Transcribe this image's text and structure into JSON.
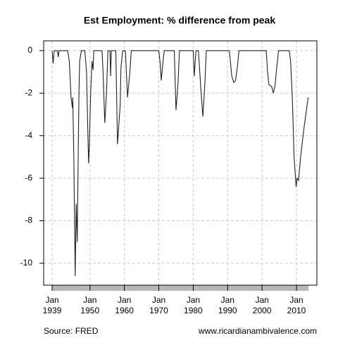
{
  "chart_data": {
    "type": "line",
    "title": "Est Employment: % difference from peak",
    "source": "Source: FRED",
    "credit": "www.ricardianambivalence.com",
    "color": "#222222",
    "grid": true,
    "xlim": [
      1936.54,
      2015.93
    ],
    "ylim": [
      -11.03,
      0.46
    ],
    "yticks": [
      0,
      -2,
      -4,
      -6,
      -8,
      -10
    ],
    "xticks": [
      {
        "value": 1939,
        "label": "Jan 1939"
      },
      {
        "value": 1950,
        "label": "Jan 1950"
      },
      {
        "value": 1960,
        "label": "Jan 1960"
      },
      {
        "value": 1970,
        "label": "Jan 1970"
      },
      {
        "value": 1980,
        "label": "Jan 1980"
      },
      {
        "value": 1990,
        "label": "Jan 1990"
      },
      {
        "value": 2000,
        "label": "Jan 2000"
      },
      {
        "value": 2010,
        "label": "Jan 2010"
      }
    ],
    "x": [
      1939.0,
      1939.3,
      1939.6,
      1940.5,
      1940.8,
      1941.0,
      1943.5,
      1944.0,
      1944.5,
      1944.9,
      1945.0,
      1945.3,
      1945.7,
      1946.0,
      1946.3,
      1946.5,
      1946.8,
      1947.0,
      1947.5,
      1948.5,
      1949.0,
      1949.4,
      1949.6,
      1949.8,
      1950.2,
      1950.6,
      1950.9,
      1951.1,
      1953.5,
      1953.8,
      1954.3,
      1954.8,
      1955.2,
      1955.8,
      1956.0,
      1956.2,
      1957.5,
      1958.0,
      1958.8,
      1959.0,
      1959.5,
      1960.3,
      1960.9,
      1961.6,
      1962.0,
      1970.0,
      1970.4,
      1970.7,
      1971.3,
      1971.6,
      1974.5,
      1975.0,
      1975.6,
      1976.0,
      1980.0,
      1980.3,
      1980.8,
      1981.5,
      1982.3,
      1982.8,
      1983.4,
      1983.8,
      1990.5,
      1991.2,
      1991.8,
      1992.3,
      1992.8,
      1993.3,
      2001.2,
      2001.6,
      2002.0,
      2002.8,
      2003.3,
      2003.8,
      2004.2,
      2004.8,
      2007.9,
      2008.3,
      2008.8,
      2009.3,
      2009.9,
      2010.2,
      2010.6,
      2011.2,
      2012.3,
      2013.4
    ],
    "series": [
      {
        "values": [
          0,
          -0.6,
          0,
          0,
          -0.3,
          0,
          0,
          -0.5,
          -2.2,
          -2.7,
          -2.2,
          -5,
          -10.6,
          -7.2,
          -9.0,
          -6,
          -2,
          -0.5,
          0,
          0,
          -1,
          -4,
          -5.3,
          -4.5,
          -2,
          -0.5,
          -0.9,
          0,
          0,
          -1,
          -3.4,
          -2,
          0,
          0,
          -1.2,
          0,
          0,
          -4.4,
          -2.5,
          -0.8,
          0,
          0,
          -2.2,
          -1,
          0,
          0,
          -0.6,
          -1.4,
          -0.4,
          0,
          0,
          -2.8,
          -1.5,
          0,
          0,
          -1.2,
          0,
          0,
          -2.0,
          -3.1,
          -1.5,
          0,
          0,
          -1.2,
          -1.5,
          -1.4,
          -0.8,
          0,
          0,
          -1.0,
          -1.6,
          -1.7,
          -2.0,
          -1.6,
          -0.9,
          0,
          0,
          -0.5,
          -2.2,
          -5.0,
          -6.4,
          -6.0,
          -6.1,
          -5.0,
          -3.5,
          -2.2
        ]
      }
    ]
  }
}
